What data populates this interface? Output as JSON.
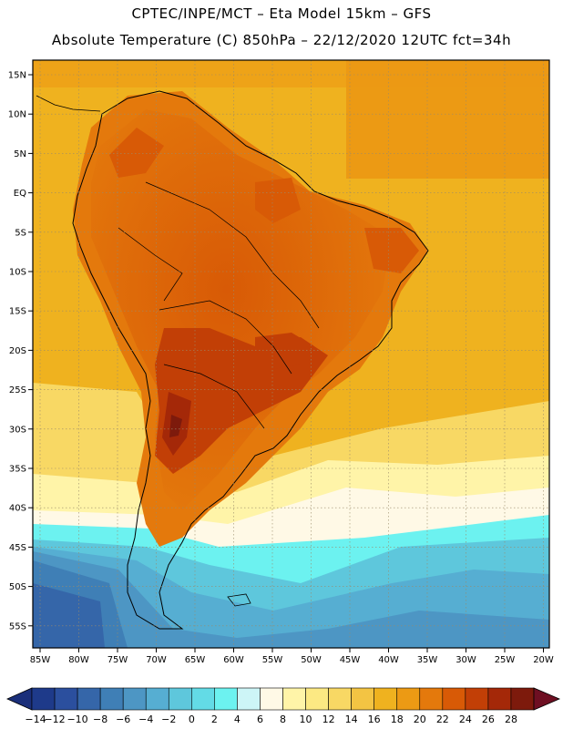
{
  "header": {
    "line1": "CPTEC/INPE/MCT –  Eta Model 15km – GFS",
    "line2": "Absolute Temperature (C) 850hPa – 22/12/2020 12UTC fct=34h"
  },
  "map": {
    "region": "South America",
    "lon_labels": [
      "85W",
      "80W",
      "75W",
      "70W",
      "65W",
      "60W",
      "55W",
      "50W",
      "45W",
      "40W",
      "35W",
      "30W",
      "25W",
      "20W"
    ],
    "lat_labels": [
      "15N",
      "10N",
      "5N",
      "EQ",
      "5S",
      "10S",
      "15S",
      "20S",
      "25S",
      "30S",
      "35S",
      "40S",
      "45S",
      "50S",
      "55S"
    ]
  },
  "colorbar": {
    "labels": [
      "-14",
      "-12",
      "-10",
      "-8",
      "-6",
      "-4",
      "-2",
      "0",
      "2",
      "4",
      "6",
      "8",
      "10",
      "12",
      "14",
      "16",
      "18",
      "20",
      "22",
      "24",
      "26",
      "28"
    ],
    "colors": [
      "#1e3a8a",
      "#2b4f9e",
      "#3566a9",
      "#3f7fb6",
      "#4d96c4",
      "#56aed2",
      "#5ec7dc",
      "#63dbe6",
      "#6cf2f0",
      "#cdf5f7",
      "#fff9e6",
      "#fff4a8",
      "#fce983",
      "#f8d864",
      "#f3c443",
      "#efb21f",
      "#ec9a14",
      "#e4790c",
      "#d85a06",
      "#c23f06",
      "#a42808",
      "#7d1a0c"
    ]
  }
}
